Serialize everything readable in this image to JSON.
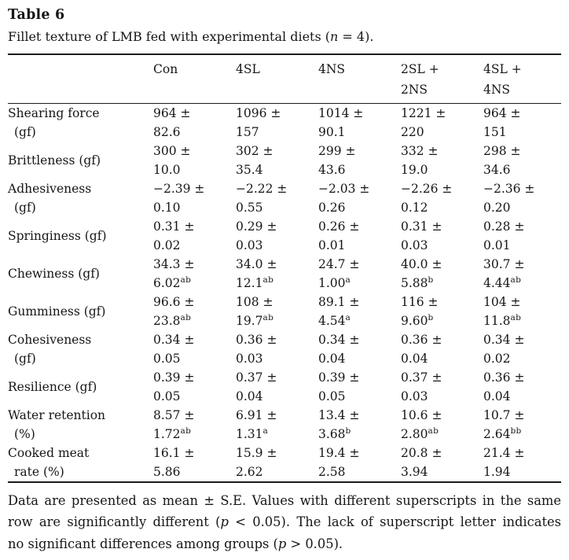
{
  "title": "Table 6",
  "caption": {
    "pre": "Fillet texture of LMB fed with experimental diets (",
    "var": "n",
    "post": " = 4)."
  },
  "table": {
    "columns": [
      {
        "l1": "Con",
        "l2": ""
      },
      {
        "l1": "4SL",
        "l2": ""
      },
      {
        "l1": "4NS",
        "l2": ""
      },
      {
        "l1": "2SL +",
        "l2": "2NS"
      },
      {
        "l1": "4SL +",
        "l2": "4NS"
      }
    ],
    "rows": [
      {
        "label1": "Shearing force",
        "label2": "(gf)",
        "cells": [
          {
            "v": "964 ±",
            "e": "82.6",
            "sup": ""
          },
          {
            "v": "1096 ±",
            "e": "157",
            "sup": ""
          },
          {
            "v": "1014 ±",
            "e": "90.1",
            "sup": ""
          },
          {
            "v": "1221 ±",
            "e": "220",
            "sup": ""
          },
          {
            "v": "964 ±",
            "e": "151",
            "sup": ""
          }
        ]
      },
      {
        "label1": "Brittleness (gf)",
        "label2": "",
        "cells": [
          {
            "v": "300 ±",
            "e": "10.0",
            "sup": ""
          },
          {
            "v": "302 ±",
            "e": "35.4",
            "sup": ""
          },
          {
            "v": "299 ±",
            "e": "43.6",
            "sup": ""
          },
          {
            "v": "332 ±",
            "e": "19.0",
            "sup": ""
          },
          {
            "v": "298 ±",
            "e": "34.6",
            "sup": ""
          }
        ]
      },
      {
        "label1": "Adhesiveness",
        "label2": "(gf)",
        "cells": [
          {
            "v": "−2.39 ±",
            "e": "0.10",
            "sup": ""
          },
          {
            "v": "−2.22 ±",
            "e": "0.55",
            "sup": ""
          },
          {
            "v": "−2.03 ±",
            "e": "0.26",
            "sup": ""
          },
          {
            "v": "−2.26 ±",
            "e": "0.12",
            "sup": ""
          },
          {
            "v": "−2.36 ±",
            "e": "0.20",
            "sup": ""
          }
        ]
      },
      {
        "label1": "Springiness (gf)",
        "label2": "",
        "cells": [
          {
            "v": "0.31 ±",
            "e": "0.02",
            "sup": ""
          },
          {
            "v": "0.29 ±",
            "e": "0.03",
            "sup": ""
          },
          {
            "v": "0.26 ±",
            "e": "0.01",
            "sup": ""
          },
          {
            "v": "0.31 ±",
            "e": "0.03",
            "sup": ""
          },
          {
            "v": "0.28 ±",
            "e": "0.01",
            "sup": ""
          }
        ]
      },
      {
        "label1": "Chewiness (gf)",
        "label2": "",
        "cells": [
          {
            "v": "34.3 ±",
            "e": "6.02",
            "sup": "ab"
          },
          {
            "v": "34.0 ±",
            "e": "12.1",
            "sup": "ab"
          },
          {
            "v": "24.7 ±",
            "e": "1.00",
            "sup": "a"
          },
          {
            "v": "40.0 ±",
            "e": "5.88",
            "sup": "b"
          },
          {
            "v": "30.7 ±",
            "e": "4.44",
            "sup": "ab"
          }
        ]
      },
      {
        "label1": "Gumminess (gf)",
        "label2": "",
        "cells": [
          {
            "v": "96.6 ±",
            "e": "23.8",
            "sup": "ab"
          },
          {
            "v": "108 ±",
            "e": "19.7",
            "sup": "ab"
          },
          {
            "v": "89.1 ±",
            "e": "4.54",
            "sup": "a"
          },
          {
            "v": "116 ±",
            "e": "9.60",
            "sup": "b"
          },
          {
            "v": "104 ±",
            "e": "11.8",
            "sup": "ab"
          }
        ]
      },
      {
        "label1": "Cohesiveness",
        "label2": "(gf)",
        "cells": [
          {
            "v": "0.34 ±",
            "e": "0.05",
            "sup": ""
          },
          {
            "v": "0.36 ±",
            "e": "0.03",
            "sup": ""
          },
          {
            "v": "0.34 ±",
            "e": "0.04",
            "sup": ""
          },
          {
            "v": "0.36 ±",
            "e": "0.04",
            "sup": ""
          },
          {
            "v": "0.34 ±",
            "e": "0.02",
            "sup": ""
          }
        ]
      },
      {
        "label1": "Resilience (gf)",
        "label2": "",
        "cells": [
          {
            "v": "0.39 ±",
            "e": "0.05",
            "sup": ""
          },
          {
            "v": "0.37 ±",
            "e": "0.04",
            "sup": ""
          },
          {
            "v": "0.39 ±",
            "e": "0.05",
            "sup": ""
          },
          {
            "v": "0.37 ±",
            "e": "0.03",
            "sup": ""
          },
          {
            "v": "0.36 ±",
            "e": "0.04",
            "sup": ""
          }
        ]
      },
      {
        "label1": "Water retention",
        "label2": "(%)",
        "cells": [
          {
            "v": "8.57 ±",
            "e": "1.72",
            "sup": "ab"
          },
          {
            "v": "6.91 ±",
            "e": "1.31",
            "sup": "a"
          },
          {
            "v": "13.4 ±",
            "e": "3.68",
            "sup": "b"
          },
          {
            "v": "10.6 ±",
            "e": "2.80",
            "sup": "ab"
          },
          {
            "v": "10.7 ±",
            "e": "2.64",
            "sup": "bb"
          }
        ]
      },
      {
        "label1": "Cooked meat",
        "label2": "rate (%)",
        "cells": [
          {
            "v": "16.1 ±",
            "e": "5.86",
            "sup": ""
          },
          {
            "v": "15.9 ±",
            "e": "2.62",
            "sup": ""
          },
          {
            "v": "19.4 ±",
            "e": "2.58",
            "sup": ""
          },
          {
            "v": "20.8 ±",
            "e": "3.94",
            "sup": ""
          },
          {
            "v": "21.4 ±",
            "e": "1.94",
            "sup": ""
          }
        ]
      }
    ]
  },
  "footnote": {
    "l1": "Data are presented as mean ± S.E. Values with different superscripts in the same",
    "l2a": "row are significantly different (",
    "l2p": "p",
    "l2b": " < 0.05). The lack of superscript letter indicates",
    "l3a": "no significant differences among groups (",
    "l3p": "p",
    "l3b": " > 0.05)."
  }
}
